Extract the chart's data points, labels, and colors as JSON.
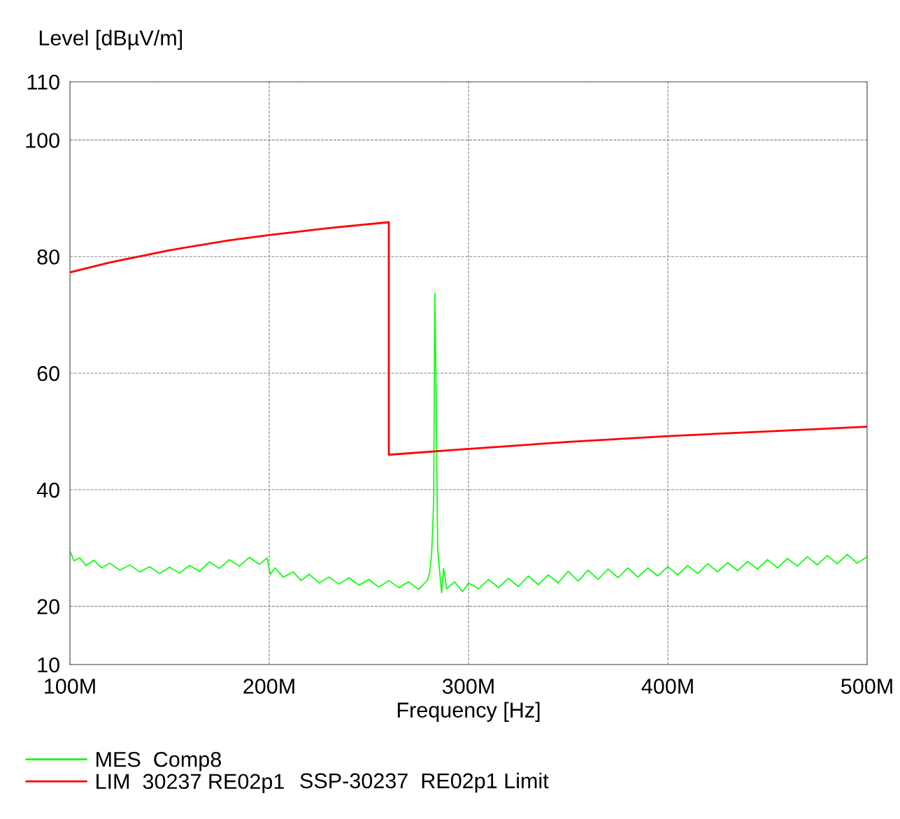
{
  "chart_data": {
    "type": "line",
    "xlabel": "Frequency [Hz]",
    "ylabel": "Level [dBµV/m]",
    "xlim": [
      100000000.0,
      500000000.0
    ],
    "xticks": [
      {
        "value": 100000000.0,
        "label": "100M"
      },
      {
        "value": 200000000.0,
        "label": "200M"
      },
      {
        "value": 300000000.0,
        "label": "300M"
      },
      {
        "value": 400000000.0,
        "label": "400M"
      },
      {
        "value": 500000000.0,
        "label": "500M"
      }
    ],
    "ylim": [
      10,
      110
    ],
    "yticks": [
      10,
      20,
      40,
      60,
      80,
      100,
      110
    ],
    "grid": true,
    "legend": "bottom",
    "line_style": "solid",
    "series": [
      {
        "name": "MES  Comp8",
        "color": "#00ff00",
        "x": [
          100000000.0,
          102000000.0,
          105000000.0,
          108000000.0,
          112000000.0,
          116000000.0,
          120000000.0,
          125000000.0,
          130000000.0,
          135000000.0,
          140000000.0,
          145000000.0,
          150000000.0,
          155000000.0,
          160000000.0,
          165000000.0,
          170000000.0,
          175000000.0,
          180000000.0,
          185000000.0,
          190000000.0,
          195000000.0,
          199000000.0,
          200500000.0,
          203000000.0,
          207000000.0,
          212000000.0,
          216000000.0,
          220000000.0,
          225000000.0,
          230000000.0,
          235000000.0,
          240000000.0,
          245000000.0,
          250000000.0,
          255000000.0,
          260000000.0,
          265000000.0,
          270000000.0,
          275000000.0,
          278000000.0,
          279500000.0,
          280500000.0,
          281500000.0,
          282500000.0,
          283100000.0,
          283800000.0,
          284500000.0,
          285500000.0,
          286500000.0,
          287500000.0,
          289000000.0,
          293000000.0,
          297000000.0,
          300000000.0,
          305000000.0,
          310000000.0,
          315000000.0,
          320000000.0,
          325000000.0,
          330000000.0,
          335000000.0,
          340000000.0,
          345000000.0,
          350000000.0,
          355000000.0,
          360000000.0,
          365000000.0,
          370000000.0,
          375000000.0,
          380000000.0,
          385000000.0,
          390000000.0,
          395000000.0,
          400000000.0,
          405000000.0,
          410000000.0,
          415000000.0,
          420000000.0,
          425000000.0,
          430000000.0,
          435000000.0,
          440000000.0,
          445000000.0,
          450000000.0,
          455000000.0,
          460000000.0,
          465000000.0,
          470000000.0,
          475000000.0,
          480000000.0,
          485000000.0,
          490000000.0,
          495000000.0,
          500000000.0
        ],
        "values": [
          29.5,
          27.8,
          28.3,
          27.0,
          27.9,
          26.6,
          27.4,
          26.2,
          27.1,
          25.9,
          26.8,
          25.6,
          26.7,
          25.7,
          27.0,
          26.0,
          27.6,
          26.5,
          28.0,
          26.9,
          28.4,
          27.2,
          28.3,
          25.5,
          26.6,
          25.0,
          25.9,
          24.4,
          25.5,
          24.0,
          25.0,
          23.8,
          24.9,
          23.6,
          24.6,
          23.3,
          24.4,
          23.2,
          24.2,
          22.9,
          24.0,
          24.5,
          25.8,
          29.0,
          38.0,
          73.7,
          55.0,
          30.0,
          26.0,
          22.3,
          26.5,
          23.0,
          24.2,
          22.5,
          24.0,
          23.0,
          24.6,
          23.2,
          24.8,
          23.4,
          25.2,
          23.7,
          25.4,
          24.0,
          26.0,
          24.3,
          26.2,
          24.6,
          26.4,
          24.9,
          26.6,
          25.0,
          26.6,
          25.2,
          26.8,
          25.4,
          27.0,
          25.6,
          27.3,
          25.9,
          27.5,
          26.1,
          27.7,
          26.4,
          28.0,
          26.6,
          28.2,
          26.9,
          28.5,
          27.1,
          28.7,
          27.3,
          28.9,
          27.4,
          28.5
        ]
      },
      {
        "name": "LIM  30237 RE02p1",
        "color": "#ff0000",
        "x": [
          100000000.0,
          120000000.0,
          150000000.0,
          180000000.0,
          200000000.0,
          230000000.0,
          260000000.0,
          260000000.0,
          300000000.0,
          350000000.0,
          400000000.0,
          450000000.0,
          500000000.0
        ],
        "values": [
          77.3,
          79.0,
          81.1,
          82.8,
          83.7,
          84.9,
          85.9,
          46.0,
          47.0,
          48.2,
          49.2,
          50.0,
          50.8
        ]
      }
    ],
    "annotations": [
      "SSP-30237  RE02p1 Limit"
    ]
  }
}
